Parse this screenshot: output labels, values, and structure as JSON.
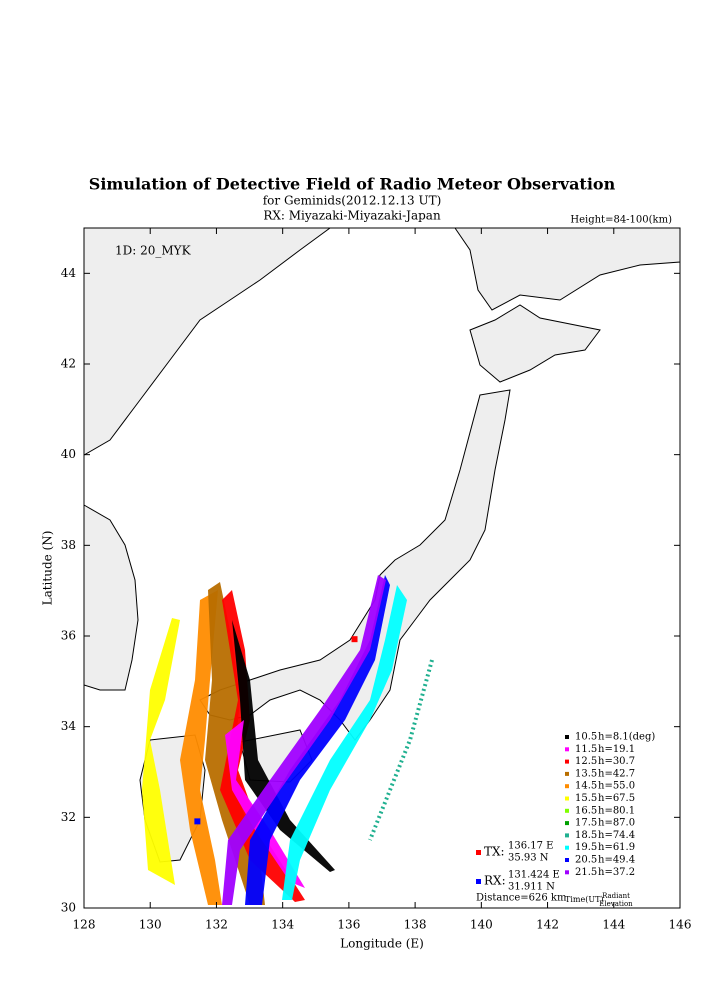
{
  "chart_data": {
    "type": "map",
    "title": "Simulation of Detective Field of Radio Meteor Observation",
    "subtitle": "for Geminids(2012.12.13 UT)",
    "receiver": "RX: Miyazaki-Miyazaki-Japan",
    "height_note": "Height=84-100(km)",
    "station_id": "1D: 20_MYK",
    "x_label": "Longitude (E)",
    "y_label": "Latitude (N)",
    "xlim": [
      128,
      146
    ],
    "ylim": [
      30,
      45
    ],
    "xticks": [
      128,
      130,
      132,
      134,
      136,
      138,
      140,
      142,
      144,
      146
    ],
    "yticks": [
      30,
      32,
      34,
      36,
      38,
      40,
      42,
      44
    ],
    "legend": [
      {
        "time": 10.5,
        "elevation": "h=8.1(deg)",
        "color": "#000000"
      },
      {
        "time": 11.5,
        "elevation": "h=19.1",
        "color": "#ff00ff"
      },
      {
        "time": 12.5,
        "elevation": "h=30.7",
        "color": "#ff0000"
      },
      {
        "time": 13.5,
        "elevation": "h=42.7",
        "color": "#b86e00"
      },
      {
        "time": 14.5,
        "elevation": "h=55.0",
        "color": "#ff8c00"
      },
      {
        "time": 15.5,
        "elevation": "h=67.5",
        "color": "#ffff00"
      },
      {
        "time": 16.5,
        "elevation": "h=80.1",
        "color": "#80ff00"
      },
      {
        "time": 17.5,
        "elevation": "h=87.0",
        "color": "#00a000"
      },
      {
        "time": 18.5,
        "elevation": "h=74.4",
        "color": "#20b090"
      },
      {
        "time": 19.5,
        "elevation": "h=61.9",
        "color": "#00ffff"
      },
      {
        "time": 20.5,
        "elevation": "h=49.4",
        "color": "#0000ff"
      },
      {
        "time": 21.5,
        "elevation": "h=37.2",
        "color": "#a000ff"
      }
    ],
    "legend_time_label": "Time(UT)",
    "legend_elev_label": [
      "Radiant",
      "Elevation"
    ],
    "tx": {
      "label": "TX:",
      "lon": 136.17,
      "lat": 35.93,
      "lon_label": "136.17 E",
      "lat_label": "35.93 N",
      "color": "#ff0000"
    },
    "rx": {
      "label": "RX:",
      "lon": 131.424,
      "lat": 31.911,
      "lon_label": "131.424 E",
      "lat_label": "31.911 N",
      "color": "#0000ff"
    },
    "distance": "Distance=626 km"
  }
}
